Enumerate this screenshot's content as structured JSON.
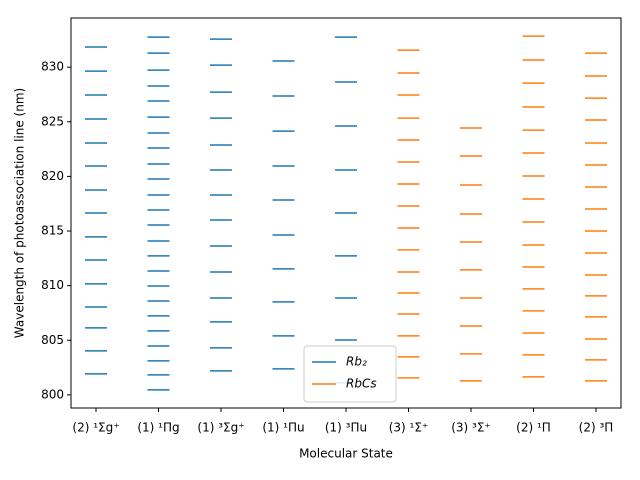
{
  "chart_data": {
    "type": "level",
    "x_label": "Molecular State",
    "y_label": "Wavelength of photoassociation line (nm)",
    "categories": [
      "(2) ¹Σg⁺",
      "(1) ¹Πg",
      "(1) ³Σg⁺",
      "(1) ¹Πu",
      "(1) ³Πu",
      "(3) ¹Σ⁺",
      "(3) ³Σ⁺",
      "(2) ¹Π",
      "(2) ³Π"
    ],
    "ylim": [
      798.8,
      834.5
    ],
    "yticks": [
      800,
      805,
      810,
      815,
      820,
      825,
      830
    ],
    "legend": "lower center",
    "series": [
      {
        "name": "Rb₂",
        "color": "#1f77b4",
        "values": [
          [
            831.84,
            829.64,
            827.45,
            825.25,
            823.06,
            820.95,
            818.76,
            816.65,
            814.46,
            812.35,
            810.16,
            808.05,
            806.13,
            804.03,
            801.92
          ],
          [
            832.75,
            831.29,
            829.73,
            828.27,
            826.9,
            825.43,
            823.97,
            822.6,
            821.13,
            819.76,
            818.3,
            816.93,
            815.55,
            814.09,
            812.72,
            811.34,
            809.97,
            808.6,
            807.23,
            805.86,
            804.48,
            803.11,
            801.83,
            800.46
          ],
          [
            832.57,
            830.19,
            827.72,
            825.34,
            822.87,
            820.59,
            818.3,
            816.01,
            813.63,
            811.25,
            808.87,
            806.68,
            804.3,
            802.2
          ],
          [
            830.56,
            827.36,
            824.15,
            820.95,
            817.84,
            814.64,
            811.53,
            808.51,
            805.4,
            802.38
          ],
          [
            832.75,
            828.64,
            824.61,
            820.59,
            816.65,
            812.72,
            808.87,
            805.03,
            801.1
          ],
          null,
          null,
          null,
          null
        ]
      },
      {
        "name": "RbCs",
        "color": "#ff7f0e",
        "values": [
          null,
          null,
          null,
          null,
          null,
          [
            831.56,
            829.46,
            827.45,
            825.34,
            823.33,
            821.32,
            819.3,
            817.29,
            815.28,
            813.27,
            811.25,
            809.33,
            807.41,
            805.4,
            803.48,
            801.56
          ],
          [
            824.43,
            821.87,
            819.21,
            816.56,
            814.0,
            811.44,
            808.87,
            806.31,
            803.75,
            801.28
          ],
          [
            832.84,
            830.65,
            828.54,
            826.35,
            824.24,
            822.14,
            820.04,
            817.93,
            815.83,
            813.72,
            811.71,
            809.7,
            807.69,
            805.67,
            803.66,
            801.65
          ],
          [
            831.29,
            829.19,
            827.17,
            825.16,
            823.06,
            821.04,
            819.03,
            817.02,
            815.0,
            812.99,
            810.98,
            809.06,
            807.14,
            805.12,
            803.2,
            801.28
          ]
        ]
      }
    ]
  }
}
